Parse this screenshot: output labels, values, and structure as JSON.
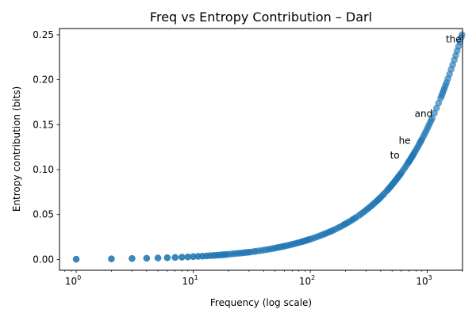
{
  "chart_data": {
    "type": "scatter",
    "title": "Freq vs Entropy Contribution – Darl",
    "xlabel": "Frequency (log scale)",
    "ylabel": "Entropy contribution (bits)",
    "xscale": "log",
    "xlim": [
      0.72,
      2000
    ],
    "ylim": [
      -0.012,
      0.257
    ],
    "x_ticks": [
      {
        "value": 1,
        "base": "10",
        "exp": "0"
      },
      {
        "value": 10,
        "base": "10",
        "exp": "1"
      },
      {
        "value": 100,
        "base": "10",
        "exp": "2"
      },
      {
        "value": 1000,
        "base": "10",
        "exp": "3"
      }
    ],
    "y_ticks": [
      "0.00",
      "0.05",
      "0.10",
      "0.15",
      "0.20",
      "0.25"
    ],
    "color": "#1f77b4",
    "grid": false,
    "points": [
      [
        1,
        0.0003
      ],
      [
        2,
        0.0007
      ],
      [
        3,
        0.0011
      ],
      [
        4,
        0.0014
      ],
      [
        5,
        0.0017
      ],
      [
        6,
        0.002
      ],
      [
        7,
        0.0023
      ],
      [
        8,
        0.0026
      ],
      [
        9,
        0.0029
      ],
      [
        10,
        0.0032
      ],
      [
        11,
        0.0035
      ],
      [
        12,
        0.0037
      ],
      [
        13,
        0.004
      ],
      [
        14,
        0.0043
      ],
      [
        15,
        0.0045
      ],
      [
        16,
        0.0048
      ],
      [
        17,
        0.005
      ],
      [
        18,
        0.0053
      ],
      [
        19,
        0.0055
      ],
      [
        20,
        0.0058
      ],
      [
        22,
        0.0063
      ],
      [
        24,
        0.0068
      ],
      [
        26,
        0.0072
      ],
      [
        28,
        0.0077
      ],
      [
        30,
        0.0081
      ],
      [
        33,
        0.0088
      ],
      [
        36,
        0.0095
      ],
      [
        40,
        0.0104
      ],
      [
        44,
        0.0113
      ],
      [
        48,
        0.0122
      ],
      [
        52,
        0.0131
      ],
      [
        56,
        0.0139
      ],
      [
        60,
        0.0148
      ],
      [
        65,
        0.0158
      ],
      [
        70,
        0.0168
      ],
      [
        75,
        0.0178
      ],
      [
        80,
        0.0188
      ],
      [
        85,
        0.0198
      ],
      [
        90,
        0.0207
      ],
      [
        95,
        0.0217
      ],
      [
        100,
        0.0226
      ],
      [
        110,
        0.0244
      ],
      [
        120,
        0.0262
      ],
      [
        130,
        0.028
      ],
      [
        140,
        0.0297
      ],
      [
        150,
        0.0313
      ],
      [
        160,
        0.033
      ],
      [
        175,
        0.0355
      ],
      [
        190,
        0.0379
      ],
      [
        200,
        0.0396
      ],
      [
        215,
        0.0419
      ],
      [
        230,
        0.0443
      ],
      [
        240,
        0.0458
      ],
      [
        260,
        0.0488
      ],
      [
        280,
        0.0519
      ],
      [
        300,
        0.0549
      ],
      [
        320,
        0.0578
      ],
      [
        340,
        0.0607
      ],
      [
        360,
        0.0636
      ],
      [
        380,
        0.0664
      ],
      [
        395,
        0.0685
      ],
      [
        420,
        0.072
      ],
      [
        450,
        0.0762
      ],
      [
        470,
        0.079
      ],
      [
        480,
        0.0803
      ],
      [
        500,
        0.0831
      ],
      [
        520,
        0.0858
      ],
      [
        540,
        0.0885
      ],
      [
        560,
        0.0912
      ],
      [
        580,
        0.0938
      ],
      [
        600,
        0.0964
      ],
      [
        640,
        0.1016
      ],
      [
        680,
        0.1068
      ],
      [
        700,
        0.1093
      ],
      [
        720,
        0.1118
      ],
      [
        740,
        0.1143
      ],
      [
        760,
        0.1168
      ],
      [
        790,
        0.1205
      ],
      [
        830,
        0.1253
      ],
      [
        870,
        0.1302
      ],
      [
        900,
        0.1338
      ],
      [
        950,
        0.1397
      ],
      [
        1000,
        0.1456
      ],
      [
        1050,
        0.1514
      ],
      [
        1100,
        0.1571
      ],
      [
        1200,
        0.1684
      ],
      [
        1300,
        0.1795
      ],
      [
        1350,
        0.185
      ],
      [
        1400,
        0.1904
      ],
      [
        1460,
        0.1968
      ],
      [
        1550,
        0.2063
      ],
      [
        1650,
        0.2167
      ],
      [
        1750,
        0.227
      ],
      [
        1850,
        0.2371
      ],
      [
        1950,
        0.2471
      ],
      [
        1,
        0.0002
      ],
      [
        2,
        0.0006
      ],
      [
        3,
        0.001
      ],
      [
        4,
        0.0013
      ],
      [
        5,
        0.0016
      ],
      [
        6,
        0.0019
      ],
      [
        7,
        0.0022
      ],
      [
        8,
        0.0025
      ],
      [
        9,
        0.0028
      ],
      [
        10,
        0.0031
      ],
      [
        11,
        0.0034
      ],
      [
        12,
        0.0036
      ],
      [
        13,
        0.0039
      ],
      [
        14,
        0.0042
      ],
      [
        15,
        0.0044
      ],
      [
        16,
        0.0047
      ],
      [
        17,
        0.0049
      ],
      [
        18,
        0.0052
      ],
      [
        19,
        0.0054
      ],
      [
        21,
        0.006
      ],
      [
        23,
        0.0065
      ],
      [
        25,
        0.007
      ],
      [
        27,
        0.0074
      ],
      [
        29,
        0.0079
      ],
      [
        31,
        0.0083
      ],
      [
        34,
        0.009
      ],
      [
        38,
        0.0099
      ],
      [
        42,
        0.0108
      ],
      [
        46,
        0.0117
      ],
      [
        50,
        0.0126
      ],
      [
        54,
        0.0135
      ],
      [
        58,
        0.0144
      ],
      [
        62,
        0.0152
      ],
      [
        67,
        0.0162
      ],
      [
        72,
        0.0172
      ],
      [
        78,
        0.0184
      ],
      [
        84,
        0.0196
      ],
      [
        88,
        0.0203
      ],
      [
        93,
        0.0213
      ],
      [
        98,
        0.0222
      ],
      [
        105,
        0.0235
      ],
      [
        115,
        0.0253
      ],
      [
        125,
        0.0271
      ],
      [
        135,
        0.0288
      ],
      [
        145,
        0.0305
      ],
      [
        155,
        0.0321
      ],
      [
        168,
        0.0343
      ],
      [
        182,
        0.0366
      ],
      [
        196,
        0.039
      ],
      [
        208,
        0.0409
      ],
      [
        225,
        0.0435
      ],
      [
        245,
        0.0466
      ],
      [
        270,
        0.0503
      ],
      [
        290,
        0.0534
      ],
      [
        310,
        0.0564
      ],
      [
        330,
        0.0593
      ],
      [
        350,
        0.0622
      ],
      [
        370,
        0.065
      ],
      [
        385,
        0.0671
      ],
      [
        405,
        0.0699
      ],
      [
        430,
        0.0734
      ],
      [
        460,
        0.0776
      ],
      [
        490,
        0.0817
      ],
      [
        510,
        0.0845
      ],
      [
        530,
        0.0872
      ],
      [
        550,
        0.0899
      ],
      [
        570,
        0.0925
      ],
      [
        590,
        0.0951
      ],
      [
        620,
        0.099
      ],
      [
        660,
        0.1042
      ],
      [
        690,
        0.108
      ],
      [
        710,
        0.1105
      ],
      [
        730,
        0.113
      ],
      [
        750,
        0.1155
      ],
      [
        775,
        0.1186
      ],
      [
        810,
        0.1229
      ],
      [
        850,
        0.1278
      ],
      [
        885,
        0.132
      ],
      [
        925,
        0.1367
      ],
      [
        975,
        0.1426
      ],
      [
        1025,
        0.1485
      ],
      [
        1075,
        0.1543
      ],
      [
        1150,
        0.1628
      ],
      [
        1250,
        0.174
      ],
      [
        1325,
        0.1823
      ],
      [
        1375,
        0.1877
      ],
      [
        1430,
        0.1936
      ],
      [
        1500,
        0.2011
      ],
      [
        1600,
        0.2116
      ],
      [
        1700,
        0.2219
      ],
      [
        1800,
        0.2321
      ],
      [
        1900,
        0.2421
      ],
      [
        1980,
        0.2501
      ]
    ],
    "annotations": [
      {
        "text": "the",
        "x": 1440,
        "y": 0.245
      },
      {
        "text": "and",
        "x": 780,
        "y": 0.162
      },
      {
        "text": "he",
        "x": 570,
        "y": 0.132
      },
      {
        "text": "to",
        "x": 480,
        "y": 0.116
      }
    ]
  }
}
